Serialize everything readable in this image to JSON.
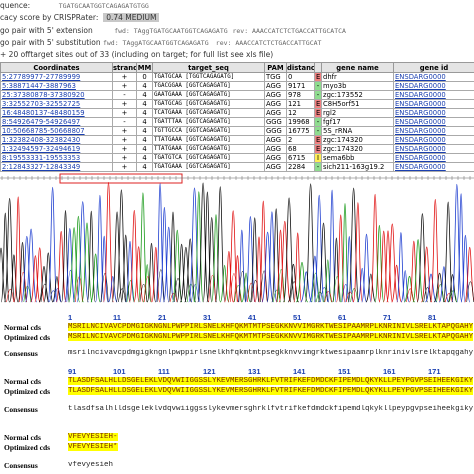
{
  "info": {
    "sequence_label": "quence:",
    "sequence": "TGATGCAATGGTCAGAGATGTGG",
    "efficacy_label": "cacy score by CRISPRater:",
    "efficacy": "0.74 MEDIUM",
    "ext_label": "go pair with 5' extension",
    "ext_fwd": "fwd: TAggTGATGCAATGGTCAGAGATG",
    "ext_rev": "rev: AAACCATCTCTGACCATTGCATCA",
    "sub_label": "go pair with 5' substitution",
    "sub_fwd": "fwd: TAggATGCAATGGTCAGAGATG",
    "sub_rev": "rev: AAACCATCTCTGACCATTGCAT",
    "offtarget_note": "+ 20 offtarget sites out of 33 (including on target; for full list see xls file)"
  },
  "table": {
    "columns": [
      "Coordinates",
      "strand",
      "MM",
      "target_seq",
      "PAM",
      "distance",
      "",
      "gene name",
      "gene id"
    ],
    "rows": [
      [
        "5:27789977-27789999",
        "+",
        "0",
        "TGATGCAA [TGGTCAGAGATG]",
        "TGG",
        "0",
        "E",
        "dhfr",
        "ENSDARG0000"
      ],
      [
        "5:38871447-3887963",
        "+",
        "4",
        "TGACGGAA [GGTCAGAGATG]",
        "AGG",
        "9171",
        "-",
        "myo3b",
        "ENSDARG0000"
      ],
      [
        "25:37380878-37380920",
        "-",
        "4",
        "GAATGAAA [GGTCAGAGATG]",
        "AGG",
        "978",
        "-",
        "zgc:173552",
        "ENSDARG0000"
      ],
      [
        "3:32552703-32552725",
        "+",
        "4",
        "TGATGCAG [GGTCAGAGATG]",
        "AGG",
        "121",
        "E",
        "C8H5orf51",
        "ENSDARG0000"
      ],
      [
        "16:48480137-48480159",
        "+",
        "4",
        "TCATGAAA [GGTCAGAGATG]",
        "AGG",
        "12",
        "E",
        "rgl2",
        "ENSDARG0000"
      ],
      [
        "8:54926479-54926497",
        "-",
        "4",
        "TGATTTAA [GGTCAGAGATG]",
        "GGG",
        "19968",
        "-",
        "fgf17",
        "ENSDARG0000"
      ],
      [
        "10:50668785-50668807",
        "+",
        "4",
        "TGTTGCCA [GGTCAGAGATG]",
        "GGG",
        "16775",
        "-",
        "5S_rRNA",
        "ENSDARG0000"
      ],
      [
        "1:32382408-32382430",
        "+",
        "4",
        "TTATGAAA [GGTCAGAGATG]",
        "AGG",
        "2",
        "E",
        "zgc:174320",
        "ENSDARG0000"
      ],
      [
        "1:32494597-32494619",
        "+",
        "4",
        "TTATGAAA [GGTCAGAGATG]",
        "AGG",
        "68",
        "E",
        "zgc:174320",
        "ENSDARG0000"
      ],
      [
        "8:19553331-19553353",
        "+",
        "4",
        "TGATGTCA [GGTCAGAGATG]",
        "AGG",
        "6715",
        "I",
        "sema6bb",
        "ENSDARG0000"
      ],
      [
        "2:12843327-12843349",
        "+",
        "4",
        "TGATGAAA [GGTCAGAGATG]",
        "AGG",
        "2284",
        "-",
        "sich211-163g19.2",
        "ENSDARG0000"
      ]
    ]
  },
  "alignment": {
    "labels": {
      "normal": "Normal cds",
      "optimized": "Optimized cds",
      "consensus": "Consensus"
    },
    "blocks": [
      {
        "ruler": [
          "1",
          "11",
          "21",
          "31",
          "41",
          "51",
          "61",
          "71",
          "81"
        ],
        "normal": "MSRILNCIVAVCPDMGIGKNGNLPWPPIRLSNELKHFQKMTMTPSEGKKNVVIMGRKTWESIPAAMRPLKNRINIVLSRELKTAPQGAHY",
        "optimized": "MSRILNCIVAVCPDMGIGKNGNLPWPPIRLSNELKHFQKMTMTPSEGKKNVVIMGRKTWESIPAAMRPLKNRINIVLSRELKTAPQGAHY",
        "consensus": "msrilncivavcpdmgigkngnlpwppirlsnelkhfqkmtmtpsegkknvvimgrktwesipaamrplknrinivlsrelktapqgahy"
      },
      {
        "ruler": [
          "91",
          "101",
          "111",
          "121",
          "131",
          "141",
          "151",
          "161",
          "171"
        ],
        "normal": "TLASDFSALHLLDSGELEKLVDQVWIIGGSSLYKEVMERSGHRKLFVTRIFKEFDMDCKFIPEMDLQKYKLLPEYPGVPSEIHEEKGIKY",
        "optimized": "TLASDFSALHLLDSGELEKLVDQVWIIGGSSLYKEVMERSGHRKLFVTRIFKEFDMDCKFIPEMDLQKYKLLPEYPGVPSEIHEEKGIKY",
        "consensus": "tlasdfsalhlldsgeleklvdqvwiiggsslykevmersghrklfvtrifkefdmdckfipemdlqkykllpeypgvpseiheekgiky"
      },
      {
        "ruler": [],
        "normal": "VFEVYESIEH-",
        "optimized": "VFEVYESIEH*",
        "consensus": "vfevyesieh"
      }
    ]
  }
}
